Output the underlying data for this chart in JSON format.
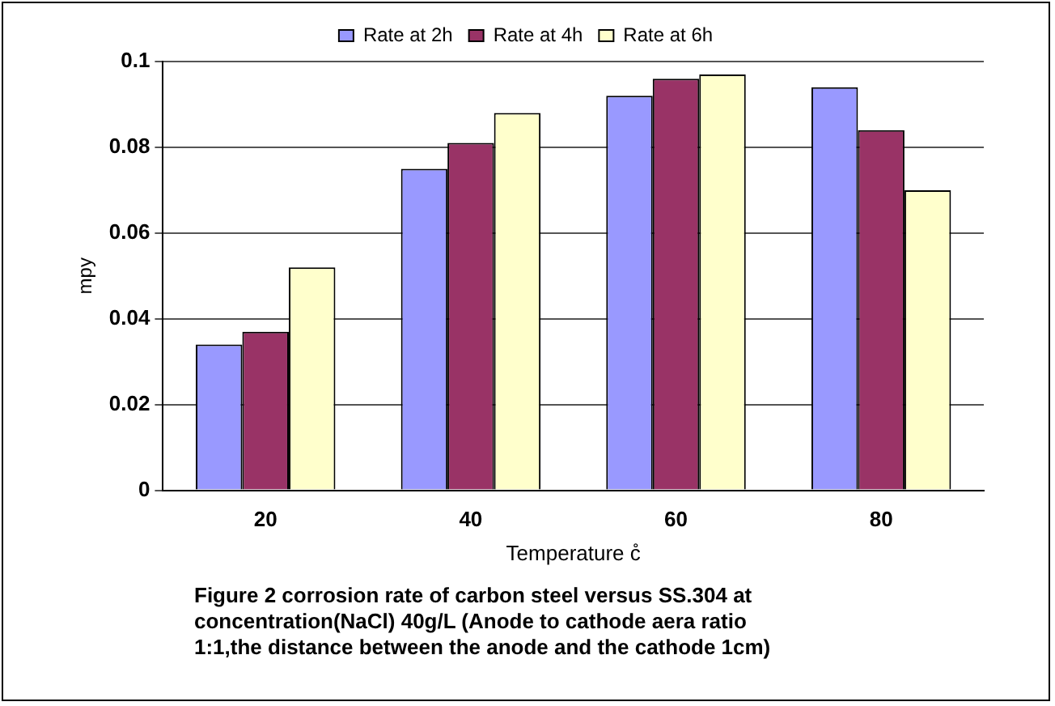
{
  "chart_data": {
    "type": "bar",
    "xlabel": "Temperature c̊",
    "ylabel": "mpy",
    "categories": [
      "20",
      "40",
      "60",
      "80"
    ],
    "series": [
      {
        "name": "Rate at 2h",
        "color": "#9999ff",
        "values": [
          0.034,
          0.075,
          0.092,
          0.094
        ]
      },
      {
        "name": "Rate at 4h",
        "color": "#993366",
        "values": [
          0.037,
          0.081,
          0.096,
          0.084
        ]
      },
      {
        "name": "Rate at 6h",
        "color": "#ffffcc",
        "values": [
          0.052,
          0.088,
          0.097,
          0.07
        ]
      }
    ],
    "ylim": [
      0,
      0.1
    ],
    "yticks": [
      0,
      0.02,
      0.04,
      0.06,
      0.08,
      0.1
    ],
    "grid": "y",
    "legend": "top",
    "annotations": [
      "Figure 2     corrosion rate of carbon steel versus SS.304 at concentration(NaCl) 40g/L  (Anode to cathode aera ratio 1:1,the distance between the anode and the cathode 1cm)"
    ]
  }
}
